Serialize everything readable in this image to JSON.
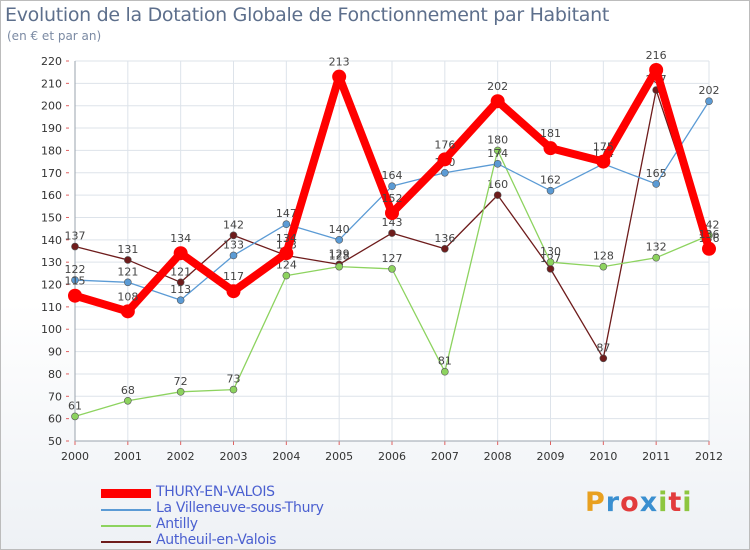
{
  "title": "Evolution de la Dotation Globale de Fonctionnement par Habitant",
  "subtitle": "(en € et par an)",
  "brand": {
    "text": "Proxiti",
    "colors": [
      "#e8a020",
      "#3a8fd0",
      "#e23c3c",
      "#3a8fd0",
      "#8dc63f",
      "#e23c3c",
      "#8dc63f"
    ]
  },
  "chart_data": {
    "type": "line",
    "title": "Evolution de la Dotation Globale de Fonctionnement par Habitant",
    "ylabel": "(en € et par an)",
    "xlabel": "",
    "ylim": [
      50,
      220
    ],
    "yticks": [
      50,
      60,
      70,
      80,
      90,
      100,
      110,
      120,
      130,
      140,
      150,
      160,
      170,
      180,
      190,
      200,
      210,
      220
    ],
    "grid": true,
    "legend_position": "bottom-left",
    "x": [
      "2000",
      "2001",
      "2002",
      "2003",
      "2004",
      "2005",
      "2006",
      "2007",
      "2008",
      "2009",
      "2010",
      "2011",
      "2012"
    ],
    "series": [
      {
        "name": "Autheuil-en-Valois",
        "color": "#6e1c1c",
        "values": [
          137,
          131,
          121,
          142,
          133,
          129,
          143,
          136,
          160,
          127,
          87,
          207,
          136
        ],
        "labels": [
          "137",
          "131",
          "121",
          "142",
          "133",
          "129",
          "143",
          "136",
          "160",
          "127",
          "87",
          "207",
          "136"
        ]
      },
      {
        "name": "Antilly",
        "color": "#8dd35f",
        "values": [
          61,
          68,
          72,
          73,
          124,
          128,
          127,
          81,
          180,
          130,
          128,
          132,
          142
        ],
        "labels": [
          "61",
          "68",
          "72",
          "73",
          "124",
          "128",
          "127",
          "81",
          "180",
          "130",
          "128",
          "132",
          "142"
        ]
      },
      {
        "name": "La Villeneuve-sous-Thury",
        "color": "#5b9bd5",
        "values": [
          122,
          121,
          113,
          133,
          147,
          140,
          164,
          170,
          174,
          162,
          174,
          165,
          202
        ],
        "labels": [
          "122",
          "121",
          "113",
          "133",
          "147",
          "140",
          "164",
          "170",
          "174",
          "162",
          "174",
          "165",
          "202"
        ]
      },
      {
        "name": "THURY-EN-VALOIS",
        "color": "#ff0000",
        "values": [
          115,
          108,
          134,
          117,
          134,
          213,
          152,
          176,
          202,
          181,
          175,
          216,
          136
        ],
        "labels": [
          "115",
          "108",
          "134",
          "117",
          "134",
          "213",
          "152",
          "176",
          "202",
          "181",
          "175",
          "216",
          "136"
        ]
      }
    ]
  },
  "legend": [
    {
      "label": "THURY-EN-VALOIS",
      "color": "#ff0000"
    },
    {
      "label": "La Villeneuve-sous-Thury",
      "color": "#5b9bd5"
    },
    {
      "label": "Antilly",
      "color": "#8dd35f"
    },
    {
      "label": "Autheuil-en-Valois",
      "color": "#6e1c1c"
    }
  ]
}
